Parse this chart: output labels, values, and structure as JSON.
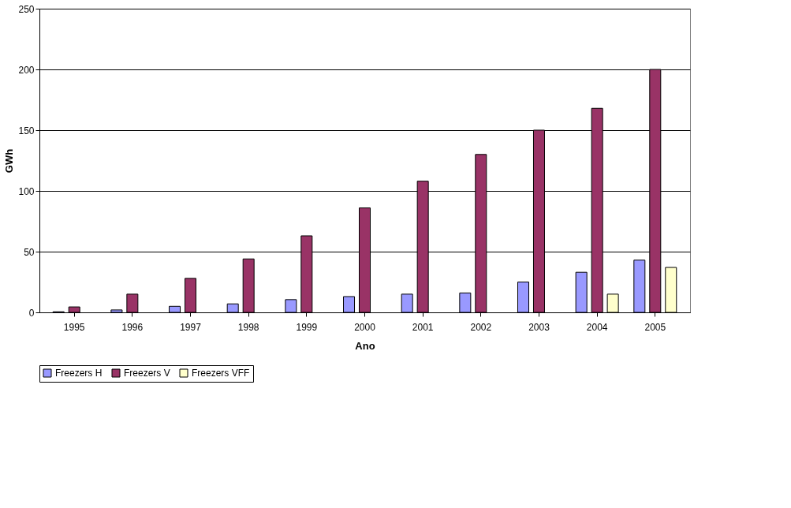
{
  "chart_data": {
    "type": "bar",
    "xlabel": "Ano",
    "ylabel": "GWh",
    "categories": [
      "1995",
      "1996",
      "1997",
      "1998",
      "1999",
      "2000",
      "2001",
      "2002",
      "2003",
      "2004",
      "2005"
    ],
    "series": [
      {
        "name": "Freezers H",
        "color": "#9999ff",
        "values": [
          0.5,
          2,
          5,
          7,
          10.5,
          13,
          15,
          16,
          25,
          33,
          43
        ]
      },
      {
        "name": "Freezers V",
        "color": "#993366",
        "values": [
          4.5,
          15,
          28,
          44,
          63,
          86,
          108,
          130,
          150,
          168,
          200
        ]
      },
      {
        "name": "Freezers VFF",
        "color": "#ffffcc",
        "values": [
          0,
          0,
          0,
          0,
          0,
          0,
          0,
          0,
          0,
          15,
          37
        ]
      }
    ],
    "ylim": [
      0,
      250
    ],
    "yticks": [
      0,
      50,
      100,
      150,
      200,
      250
    ],
    "grid": "y",
    "legend": "bottom"
  }
}
